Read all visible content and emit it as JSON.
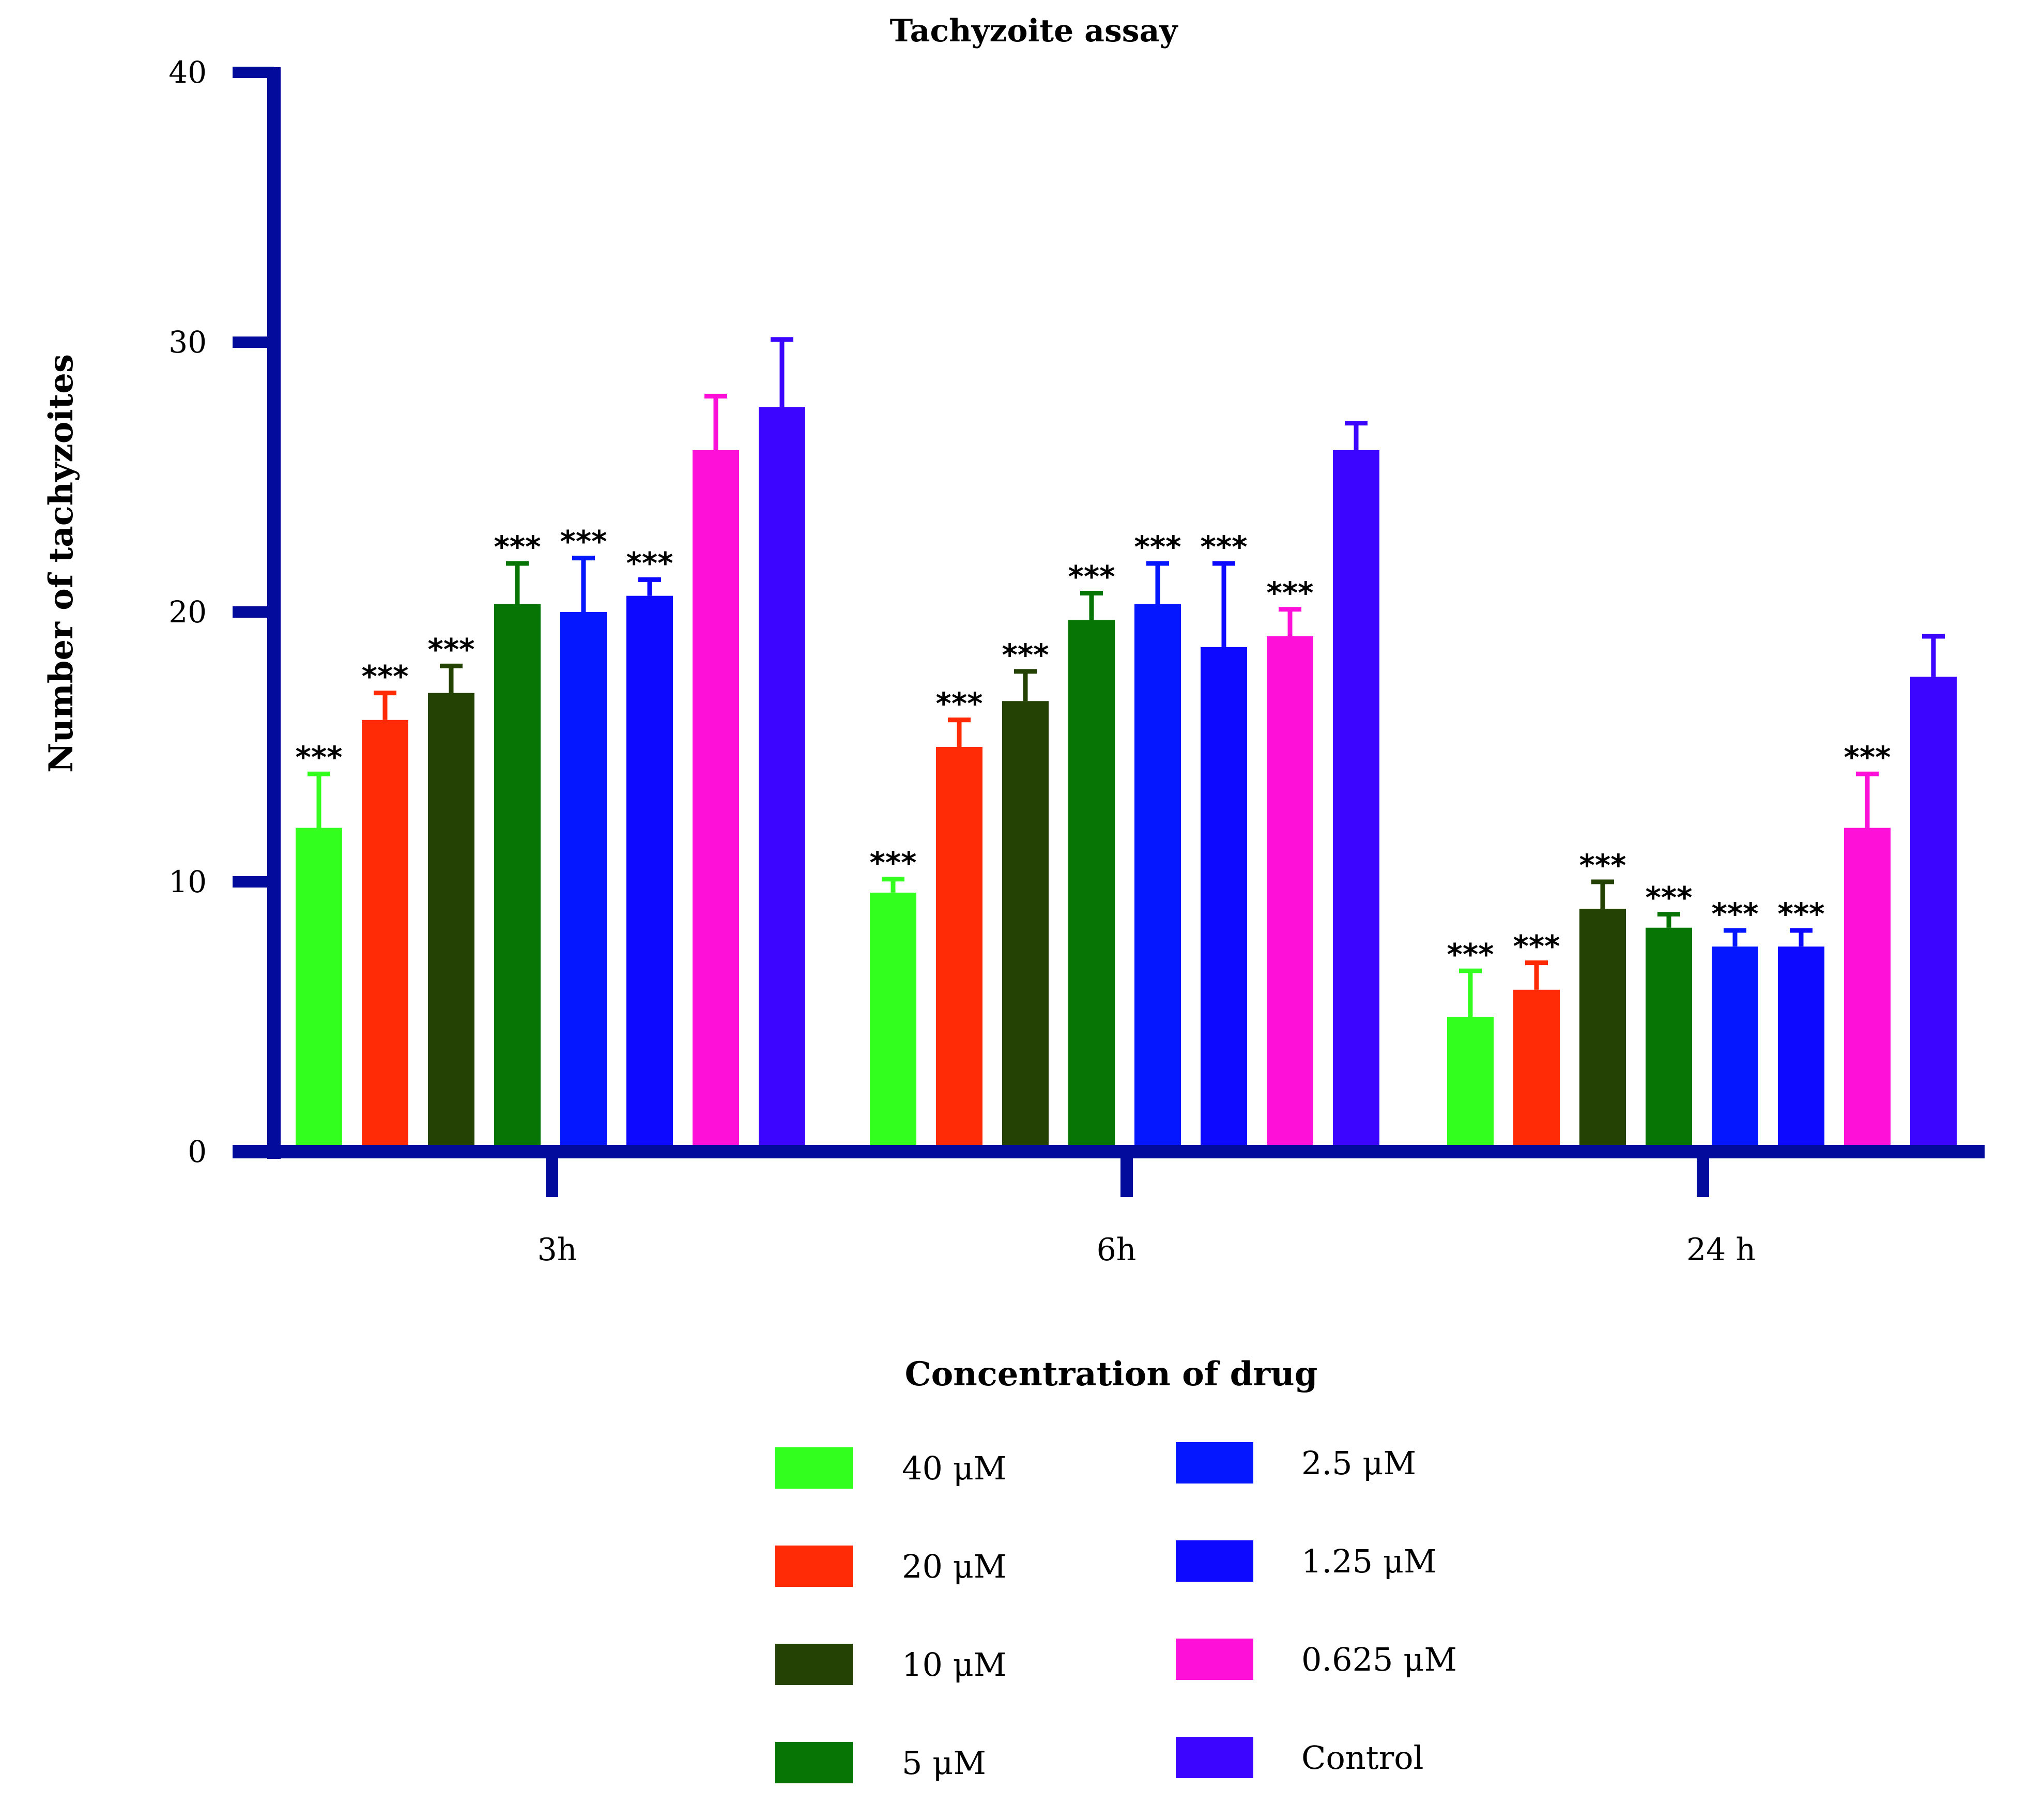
{
  "chart_data": {
    "type": "bar",
    "title": "Tachyzoite assay",
    "ylabel": "Number of tachyzoites",
    "xlabel": "Concentration of drug",
    "ylim": [
      0,
      40
    ],
    "yticks": [
      0,
      10,
      20,
      30,
      40
    ],
    "categories": [
      "3h",
      "6h",
      "24 h"
    ],
    "series": [
      {
        "name": "40 μM",
        "color": "#33ff1f",
        "values": [
          12.0,
          9.6,
          5.0
        ],
        "errors": [
          2.0,
          0.5,
          1.7
        ],
        "significance": [
          "***",
          "***",
          "***"
        ]
      },
      {
        "name": "20 μM",
        "color": "#ff2a06",
        "values": [
          16.0,
          15.0,
          6.0
        ],
        "errors": [
          1.0,
          1.0,
          1.0
        ],
        "significance": [
          "***",
          "***",
          "***"
        ]
      },
      {
        "name": "10 μM",
        "color": "#244203",
        "values": [
          17.0,
          16.7,
          9.0
        ],
        "errors": [
          1.0,
          1.1,
          1.0
        ],
        "significance": [
          "***",
          "***",
          "***"
        ]
      },
      {
        "name": "5 μM",
        "color": "#067506",
        "values": [
          20.3,
          19.7,
          8.3
        ],
        "errors": [
          1.5,
          1.0,
          0.5
        ],
        "significance": [
          "***",
          "***",
          "***"
        ]
      },
      {
        "name": "2.5 μM",
        "color": "#0517ff",
        "values": [
          20.0,
          20.3,
          7.6
        ],
        "errors": [
          2.0,
          1.5,
          0.6
        ],
        "significance": [
          "***",
          "***",
          "***"
        ]
      },
      {
        "name": "1.25 μM",
        "color": "#0d08ff",
        "values": [
          20.6,
          18.7,
          7.6
        ],
        "errors": [
          0.6,
          3.1,
          0.6
        ],
        "significance": [
          "***",
          "***",
          "***"
        ]
      },
      {
        "name": "0.625 μM",
        "color": "#ff10d8",
        "values": [
          26.0,
          19.1,
          12.0
        ],
        "errors": [
          2.0,
          1.0,
          2.0
        ],
        "significance": [
          "",
          "***",
          "***"
        ]
      },
      {
        "name": "Control",
        "color": "#3b05ff",
        "values": [
          27.6,
          26.0,
          17.6
        ],
        "errors": [
          2.5,
          1.0,
          1.5
        ],
        "significance": [
          "",
          "",
          ""
        ]
      }
    ],
    "axis_color": "#020b9b"
  }
}
